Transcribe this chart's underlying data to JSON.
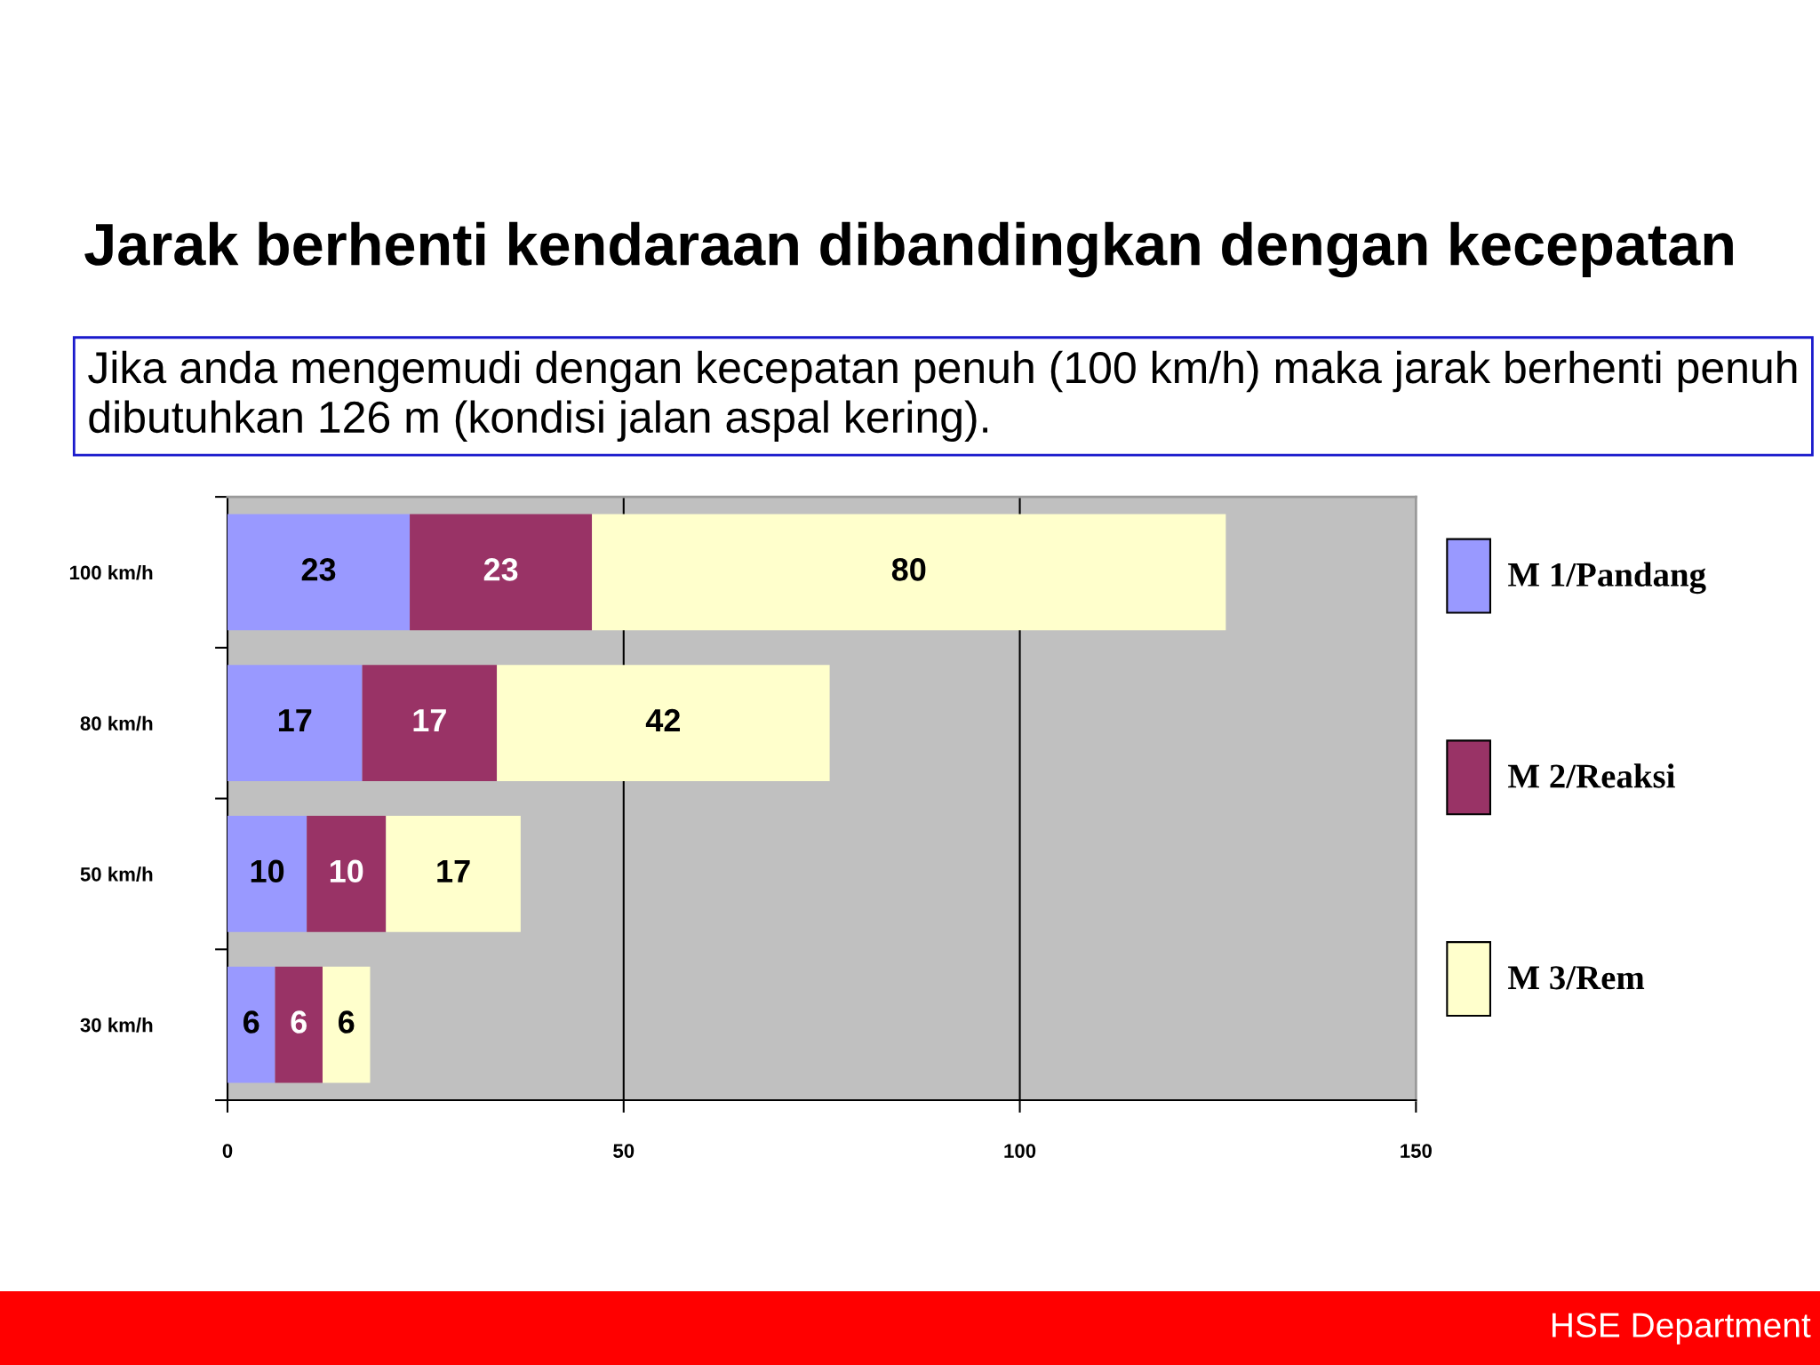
{
  "chart_data": {
    "type": "bar",
    "orientation": "horizontal",
    "stacked": true,
    "title": "Jarak berhenti kendaraan dibandingkan dengan kecepatan",
    "annotations": [
      "Jika anda mengemudi dengan kecepatan penuh (100 km/h) maka jarak berhenti penuh dibutuhkan 126 m (kondisi jalan aspal kering).",
      "HSE Department"
    ],
    "categories": [
      "100 km/h",
      "80 km/h",
      "50 km/h",
      "30 km/h"
    ],
    "series": [
      {
        "name": "M 1/Pandang",
        "color": "#9999ff",
        "values": [
          23,
          17,
          10,
          6
        ]
      },
      {
        "name": "M 2/Reaksi",
        "color": "#993366",
        "values": [
          23,
          17,
          10,
          6
        ]
      },
      {
        "name": "M 3/Rem",
        "color": "#ffffcc",
        "values": [
          80,
          42,
          17,
          6
        ]
      }
    ],
    "xlim": [
      0,
      150
    ],
    "xticks": [
      0,
      50,
      100,
      150
    ],
    "grid": "x",
    "legend": "right",
    "data_labels": true
  }
}
